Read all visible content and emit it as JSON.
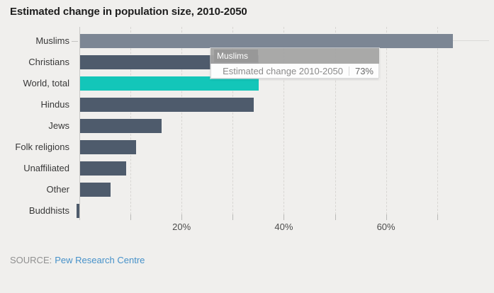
{
  "chart_data": {
    "type": "bar",
    "orientation": "horizontal",
    "title": "Estimated change in population size, 2010-2050",
    "categories": [
      "Muslims",
      "Christians",
      "World, total",
      "Hindus",
      "Jews",
      "Folk religions",
      "Unaffiliated",
      "Other",
      "Buddhists"
    ],
    "values": [
      73,
      35,
      35,
      34,
      16,
      11,
      9,
      6,
      -0.3
    ],
    "unit": "%",
    "xlim": [
      0,
      80
    ],
    "x_ticks": [
      {
        "value": 10,
        "label": ""
      },
      {
        "value": 20,
        "label": "20%"
      },
      {
        "value": 30,
        "label": ""
      },
      {
        "value": 40,
        "label": "40%"
      },
      {
        "value": 50,
        "label": ""
      },
      {
        "value": 60,
        "label": "60%"
      },
      {
        "value": 70,
        "label": ""
      }
    ],
    "grid": "dashed-vertical",
    "legend": "none",
    "highlighted_category": "Muslims",
    "bar_colors": [
      "#7c8694",
      "#4e5b6c",
      "#13c6b9",
      "#4e5b6c",
      "#4e5b6c",
      "#4e5b6c",
      "#4e5b6c",
      "#4e5b6c",
      "#4e5b6c"
    ],
    "colors": {
      "background": "#f0efed",
      "bar_default": "#4e5b6c",
      "bar_highlight": "#7c8694",
      "bar_accent_teal": "#13c6b9",
      "grid": "#d8d6d3"
    }
  },
  "tooltip": {
    "series": "Muslims",
    "label": "Estimated change 2010-2050",
    "value": "73%"
  },
  "footer": {
    "source_label": "SOURCE:",
    "source_link": "Pew Research Centre"
  }
}
